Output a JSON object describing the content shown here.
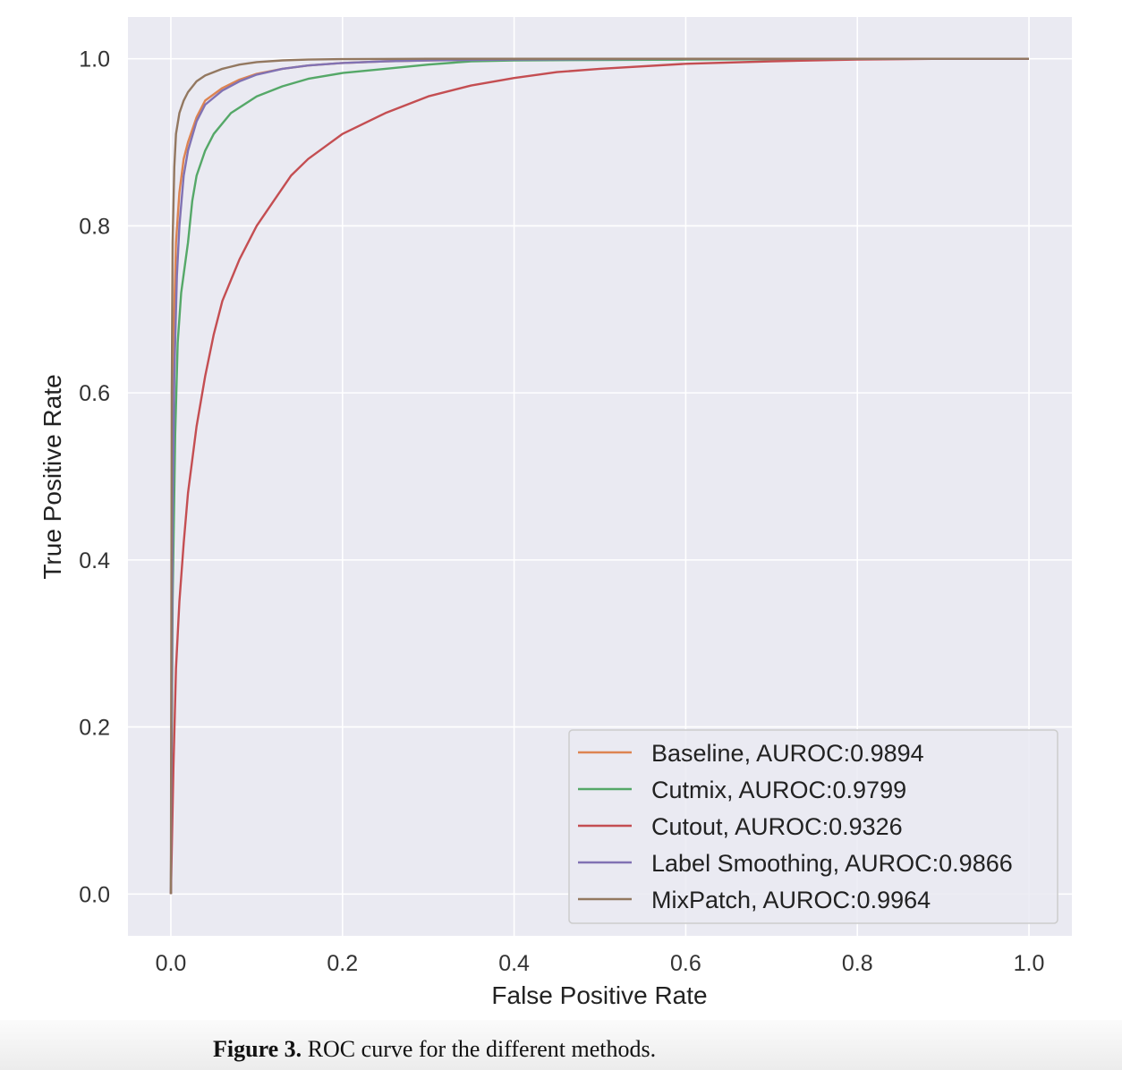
{
  "caption": {
    "label": "Figure 3.",
    "text": "ROC curve for the different methods."
  },
  "chart_data": {
    "type": "line",
    "title": "",
    "xlabel": "False Positive Rate",
    "ylabel": "True Positive Rate",
    "xlim": [
      -0.05,
      1.05
    ],
    "ylim": [
      -0.05,
      1.05
    ],
    "xticks": [
      "0.0",
      "0.2",
      "0.4",
      "0.6",
      "0.8",
      "1.0"
    ],
    "yticks": [
      "0.0",
      "0.2",
      "0.4",
      "0.6",
      "0.8",
      "1.0"
    ],
    "grid": true,
    "background": "#eaeaf2",
    "legend_position": "lower-right",
    "series": [
      {
        "name": "Baseline,  AUROC:0.9894",
        "color": "#dd8452",
        "x": [
          0,
          0.002,
          0.004,
          0.006,
          0.01,
          0.015,
          0.02,
          0.03,
          0.04,
          0.06,
          0.08,
          0.1,
          0.13,
          0.16,
          0.2,
          0.25,
          0.3,
          0.4,
          0.6,
          0.8,
          1.0
        ],
        "y": [
          0,
          0.5,
          0.7,
          0.78,
          0.84,
          0.88,
          0.9,
          0.93,
          0.95,
          0.965,
          0.975,
          0.982,
          0.988,
          0.992,
          0.995,
          0.997,
          0.998,
          0.999,
          1.0,
          1.0,
          1.0
        ]
      },
      {
        "name": "Cutmix,  AUROC:0.9799",
        "color": "#55a868",
        "x": [
          0,
          0.002,
          0.005,
          0.008,
          0.012,
          0.02,
          0.025,
          0.03,
          0.04,
          0.05,
          0.07,
          0.1,
          0.13,
          0.16,
          0.2,
          0.25,
          0.3,
          0.35,
          0.4,
          0.6,
          0.8,
          1.0
        ],
        "y": [
          0,
          0.35,
          0.55,
          0.66,
          0.72,
          0.78,
          0.83,
          0.86,
          0.89,
          0.91,
          0.935,
          0.955,
          0.967,
          0.976,
          0.983,
          0.988,
          0.993,
          0.997,
          0.998,
          0.999,
          1.0,
          1.0
        ]
      },
      {
        "name": "Cutout,  AUROC:0.9326",
        "color": "#c44e52",
        "x": [
          0,
          0.003,
          0.006,
          0.01,
          0.015,
          0.02,
          0.03,
          0.04,
          0.05,
          0.06,
          0.08,
          0.1,
          0.12,
          0.14,
          0.16,
          0.18,
          0.2,
          0.25,
          0.3,
          0.35,
          0.4,
          0.45,
          0.5,
          0.6,
          0.7,
          0.8,
          0.9,
          1.0
        ],
        "y": [
          0,
          0.15,
          0.27,
          0.35,
          0.42,
          0.48,
          0.56,
          0.62,
          0.67,
          0.71,
          0.76,
          0.8,
          0.83,
          0.86,
          0.88,
          0.895,
          0.91,
          0.935,
          0.955,
          0.968,
          0.977,
          0.984,
          0.988,
          0.994,
          0.997,
          0.999,
          1.0,
          1.0
        ]
      },
      {
        "name": "Label Smoothing,  AUROC:0.9866",
        "color": "#8172b3",
        "x": [
          0,
          0.002,
          0.004,
          0.007,
          0.01,
          0.015,
          0.02,
          0.03,
          0.04,
          0.06,
          0.08,
          0.1,
          0.13,
          0.16,
          0.2,
          0.25,
          0.3,
          0.4,
          0.6,
          0.8,
          1.0
        ],
        "y": [
          0,
          0.45,
          0.62,
          0.74,
          0.8,
          0.86,
          0.89,
          0.925,
          0.945,
          0.962,
          0.973,
          0.981,
          0.988,
          0.992,
          0.995,
          0.997,
          0.998,
          0.999,
          1.0,
          1.0,
          1.0
        ]
      },
      {
        "name": "MixPatch,  AUROC:0.9964",
        "color": "#937860",
        "x": [
          0,
          0.001,
          0.002,
          0.004,
          0.006,
          0.01,
          0.015,
          0.02,
          0.03,
          0.04,
          0.06,
          0.08,
          0.1,
          0.13,
          0.16,
          0.2,
          0.3,
          0.5,
          0.8,
          1.0
        ],
        "y": [
          0,
          0.6,
          0.78,
          0.87,
          0.91,
          0.935,
          0.95,
          0.96,
          0.973,
          0.98,
          0.988,
          0.993,
          0.996,
          0.998,
          0.999,
          0.9995,
          1.0,
          1.0,
          1.0,
          1.0
        ]
      }
    ]
  }
}
